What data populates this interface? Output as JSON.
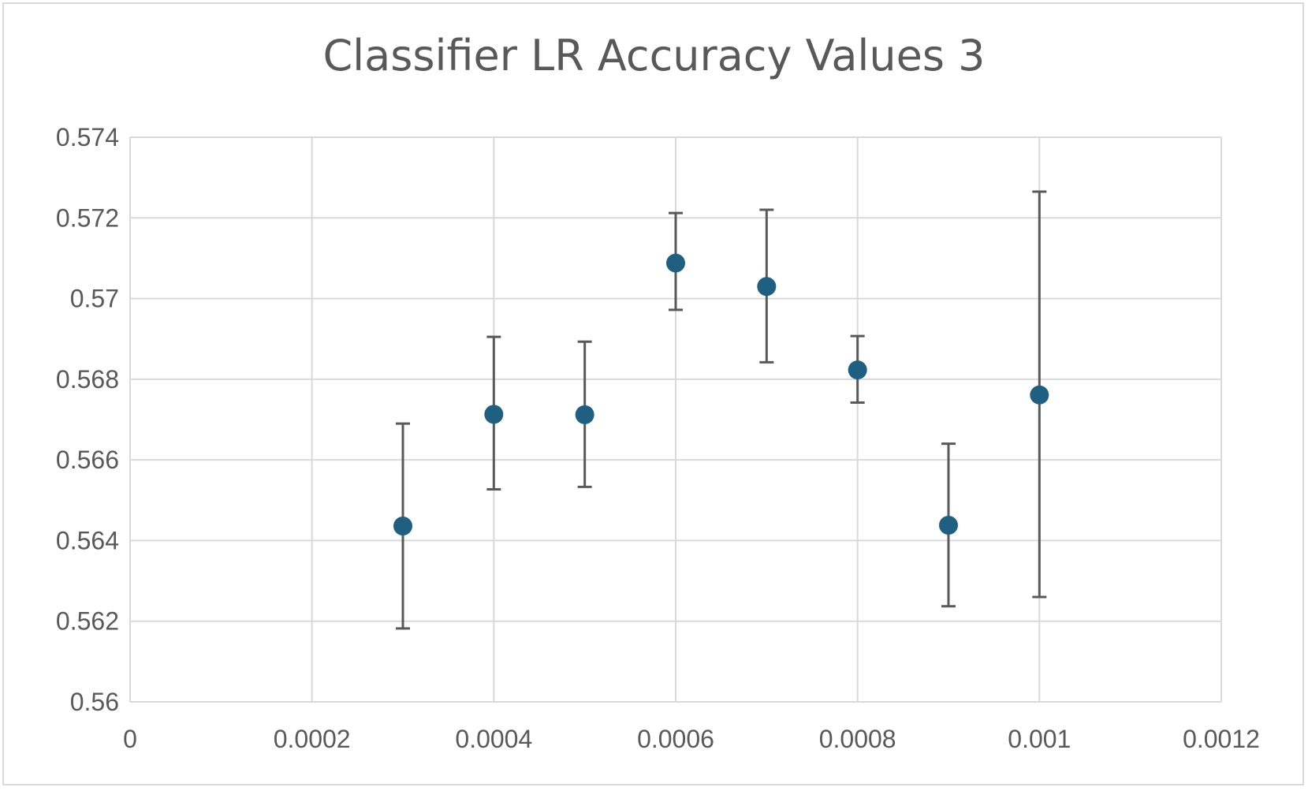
{
  "chart_data": {
    "type": "scatter",
    "title": "Classifier LR Accuracy Values 3",
    "xlabel": "",
    "ylabel": "",
    "xlim": [
      0,
      0.0012
    ],
    "ylim": [
      0.56,
      0.574
    ],
    "x_ticks": [
      "0",
      "0.0002",
      "0.0004",
      "0.0006",
      "0.0008",
      "0.001",
      "0.0012"
    ],
    "y_ticks": [
      "0.56",
      "0.562",
      "0.564",
      "0.566",
      "0.568",
      "0.57",
      "0.572",
      "0.574"
    ],
    "grid": true,
    "legend": "none",
    "series": [
      {
        "marker_color": "#1f5f82",
        "error_bar_color": "#595959",
        "points": [
          {
            "x": 0.0003,
            "y": 0.56436,
            "err_low": 0.56182,
            "err_high": 0.5669
          },
          {
            "x": 0.0004,
            "y": 0.56713,
            "err_low": 0.56527,
            "err_high": 0.56905
          },
          {
            "x": 0.0005,
            "y": 0.56712,
            "err_low": 0.56533,
            "err_high": 0.56893
          },
          {
            "x": 0.0006,
            "y": 0.57088,
            "err_low": 0.56972,
            "err_high": 0.57212
          },
          {
            "x": 0.0007,
            "y": 0.5703,
            "err_low": 0.56842,
            "err_high": 0.5722
          },
          {
            "x": 0.0008,
            "y": 0.56823,
            "err_low": 0.56742,
            "err_high": 0.56907
          },
          {
            "x": 0.0009,
            "y": 0.56438,
            "err_low": 0.56237,
            "err_high": 0.5664
          },
          {
            "x": 0.001,
            "y": 0.56761,
            "err_low": 0.5626,
            "err_high": 0.57265
          }
        ]
      }
    ],
    "colors": {
      "gridline": "#d9d9d9",
      "tick_text": "#595959",
      "title_text": "#595959"
    }
  }
}
